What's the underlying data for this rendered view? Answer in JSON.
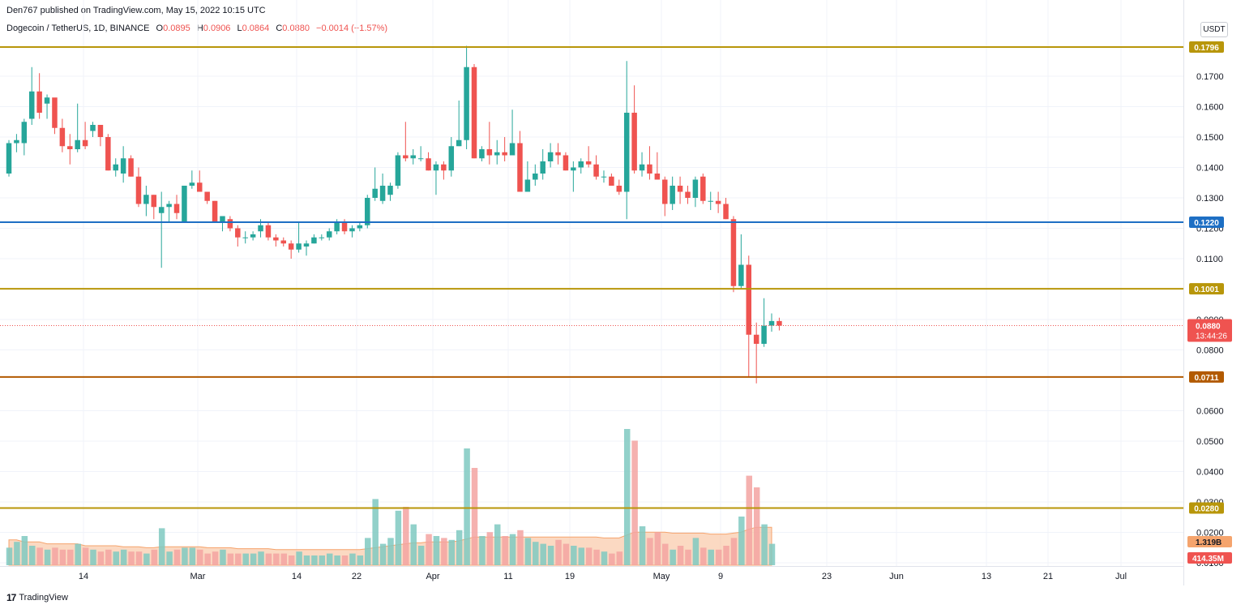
{
  "header": {
    "published": "Den767 published on TradingView.com, May 15, 2022 10:15 UTC",
    "symbol": "Dogecoin / TetherUS, 1D, BINANCE",
    "open_label": "O",
    "open": "0.0895",
    "high_label": "H",
    "high": "0.0906",
    "low_label": "L",
    "low": "0.0864",
    "close_label": "C",
    "close": "0.0880",
    "change": "−0.0014 (−1.57%)",
    "currency": "USDT"
  },
  "footer": {
    "brand": "TradingView"
  },
  "colors": {
    "up": "#26a69a",
    "down": "#ef5350",
    "gold": "#b8960a",
    "blue": "#1e6fc4",
    "brown": "#b25a00"
  },
  "chart_data": {
    "type": "candlestick",
    "title": "",
    "y_ticks": [
      "0.1700",
      "0.1600",
      "0.1500",
      "0.1400",
      "0.1300",
      "0.1200",
      "0.1100",
      "0.0900",
      "0.0800",
      "0.0600",
      "0.0500",
      "0.0400",
      "0.0300",
      "0.0200",
      "0.0100"
    ],
    "x_ticks": [
      "14",
      "Mar",
      "14",
      "22",
      "Apr",
      "11",
      "19",
      "May",
      "9",
      "23",
      "Jun",
      "13",
      "21",
      "Jul"
    ],
    "horizontal_levels": [
      {
        "value": 0.1796,
        "label": "0.1796",
        "color": "gold"
      },
      {
        "value": 0.122,
        "label": "0.1220",
        "color": "blue"
      },
      {
        "value": 0.1001,
        "label": "0.1001",
        "color": "gold"
      },
      {
        "value": 0.0711,
        "label": "0.0711",
        "color": "brown"
      },
      {
        "value": 0.028,
        "label": "0.0280",
        "color": "gold"
      }
    ],
    "last_price": {
      "value": 0.088,
      "label": "0.0880",
      "countdown": "13:44:26"
    },
    "volume_labels": {
      "ma": "1.319B",
      "last": "414.35M"
    },
    "candles": [
      {
        "o": 0.138,
        "h": 0.149,
        "l": 0.137,
        "c": 0.148
      },
      {
        "o": 0.148,
        "h": 0.151,
        "l": 0.145,
        "c": 0.149
      },
      {
        "o": 0.148,
        "h": 0.156,
        "l": 0.144,
        "c": 0.155
      },
      {
        "o": 0.156,
        "h": 0.173,
        "l": 0.154,
        "c": 0.165
      },
      {
        "o": 0.165,
        "h": 0.171,
        "l": 0.156,
        "c": 0.158
      },
      {
        "o": 0.161,
        "h": 0.164,
        "l": 0.156,
        "c": 0.163
      },
      {
        "o": 0.163,
        "h": 0.162,
        "l": 0.151,
        "c": 0.153
      },
      {
        "o": 0.153,
        "h": 0.156,
        "l": 0.145,
        "c": 0.147
      },
      {
        "o": 0.147,
        "h": 0.151,
        "l": 0.141,
        "c": 0.146
      },
      {
        "o": 0.146,
        "h": 0.161,
        "l": 0.145,
        "c": 0.149
      },
      {
        "o": 0.149,
        "h": 0.155,
        "l": 0.146,
        "c": 0.147
      },
      {
        "o": 0.152,
        "h": 0.155,
        "l": 0.15,
        "c": 0.154
      },
      {
        "o": 0.154,
        "h": 0.154,
        "l": 0.147,
        "c": 0.15
      },
      {
        "o": 0.15,
        "h": 0.151,
        "l": 0.139,
        "c": 0.139
      },
      {
        "o": 0.139,
        "h": 0.143,
        "l": 0.137,
        "c": 0.141
      },
      {
        "o": 0.138,
        "h": 0.147,
        "l": 0.135,
        "c": 0.143
      },
      {
        "o": 0.143,
        "h": 0.144,
        "l": 0.137,
        "c": 0.137
      },
      {
        "o": 0.137,
        "h": 0.14,
        "l": 0.127,
        "c": 0.128
      },
      {
        "o": 0.128,
        "h": 0.134,
        "l": 0.124,
        "c": 0.131
      },
      {
        "o": 0.131,
        "h": 0.131,
        "l": 0.123,
        "c": 0.127
      },
      {
        "o": 0.125,
        "h": 0.132,
        "l": 0.107,
        "c": 0.127
      },
      {
        "o": 0.127,
        "h": 0.129,
        "l": 0.122,
        "c": 0.128
      },
      {
        "o": 0.128,
        "h": 0.131,
        "l": 0.123,
        "c": 0.125
      },
      {
        "o": 0.122,
        "h": 0.134,
        "l": 0.122,
        "c": 0.134
      },
      {
        "o": 0.134,
        "h": 0.139,
        "l": 0.133,
        "c": 0.135
      },
      {
        "o": 0.135,
        "h": 0.139,
        "l": 0.132,
        "c": 0.132
      },
      {
        "o": 0.132,
        "h": 0.132,
        "l": 0.128,
        "c": 0.129
      },
      {
        "o": 0.129,
        "h": 0.129,
        "l": 0.122,
        "c": 0.122
      },
      {
        "o": 0.122,
        "h": 0.124,
        "l": 0.119,
        "c": 0.124
      },
      {
        "o": 0.123,
        "h": 0.124,
        "l": 0.119,
        "c": 0.12
      },
      {
        "o": 0.12,
        "h": 0.121,
        "l": 0.114,
        "c": 0.117
      },
      {
        "o": 0.117,
        "h": 0.119,
        "l": 0.115,
        "c": 0.117
      },
      {
        "o": 0.117,
        "h": 0.119,
        "l": 0.116,
        "c": 0.118
      },
      {
        "o": 0.119,
        "h": 0.123,
        "l": 0.117,
        "c": 0.121
      },
      {
        "o": 0.121,
        "h": 0.122,
        "l": 0.116,
        "c": 0.117
      },
      {
        "o": 0.117,
        "h": 0.118,
        "l": 0.114,
        "c": 0.116
      },
      {
        "o": 0.116,
        "h": 0.117,
        "l": 0.114,
        "c": 0.115
      },
      {
        "o": 0.115,
        "h": 0.116,
        "l": 0.11,
        "c": 0.113
      },
      {
        "o": 0.113,
        "h": 0.122,
        "l": 0.112,
        "c": 0.115
      },
      {
        "o": 0.114,
        "h": 0.116,
        "l": 0.111,
        "c": 0.115
      },
      {
        "o": 0.115,
        "h": 0.118,
        "l": 0.115,
        "c": 0.117
      },
      {
        "o": 0.117,
        "h": 0.118,
        "l": 0.116,
        "c": 0.117
      },
      {
        "o": 0.117,
        "h": 0.12,
        "l": 0.116,
        "c": 0.119
      },
      {
        "o": 0.119,
        "h": 0.123,
        "l": 0.118,
        "c": 0.122
      },
      {
        "o": 0.122,
        "h": 0.123,
        "l": 0.118,
        "c": 0.119
      },
      {
        "o": 0.119,
        "h": 0.121,
        "l": 0.117,
        "c": 0.12
      },
      {
        "o": 0.12,
        "h": 0.122,
        "l": 0.119,
        "c": 0.121
      },
      {
        "o": 0.121,
        "h": 0.131,
        "l": 0.12,
        "c": 0.13
      },
      {
        "o": 0.13,
        "h": 0.14,
        "l": 0.129,
        "c": 0.133
      },
      {
        "o": 0.129,
        "h": 0.138,
        "l": 0.128,
        "c": 0.134
      },
      {
        "o": 0.131,
        "h": 0.135,
        "l": 0.129,
        "c": 0.134
      },
      {
        "o": 0.134,
        "h": 0.145,
        "l": 0.133,
        "c": 0.144
      },
      {
        "o": 0.144,
        "h": 0.155,
        "l": 0.142,
        "c": 0.143
      },
      {
        "o": 0.143,
        "h": 0.146,
        "l": 0.141,
        "c": 0.144
      },
      {
        "o": 0.143,
        "h": 0.147,
        "l": 0.142,
        "c": 0.143
      },
      {
        "o": 0.143,
        "h": 0.145,
        "l": 0.139,
        "c": 0.139
      },
      {
        "o": 0.139,
        "h": 0.142,
        "l": 0.131,
        "c": 0.141
      },
      {
        "o": 0.141,
        "h": 0.142,
        "l": 0.136,
        "c": 0.139
      },
      {
        "o": 0.139,
        "h": 0.15,
        "l": 0.137,
        "c": 0.147
      },
      {
        "o": 0.147,
        "h": 0.162,
        "l": 0.147,
        "c": 0.149
      },
      {
        "o": 0.149,
        "h": 0.18,
        "l": 0.146,
        "c": 0.173
      },
      {
        "o": 0.173,
        "h": 0.174,
        "l": 0.143,
        "c": 0.143
      },
      {
        "o": 0.143,
        "h": 0.147,
        "l": 0.142,
        "c": 0.146
      },
      {
        "o": 0.146,
        "h": 0.155,
        "l": 0.141,
        "c": 0.144
      },
      {
        "o": 0.144,
        "h": 0.149,
        "l": 0.141,
        "c": 0.145
      },
      {
        "o": 0.145,
        "h": 0.15,
        "l": 0.142,
        "c": 0.144
      },
      {
        "o": 0.144,
        "h": 0.159,
        "l": 0.144,
        "c": 0.148
      },
      {
        "o": 0.148,
        "h": 0.152,
        "l": 0.132,
        "c": 0.132
      },
      {
        "o": 0.132,
        "h": 0.142,
        "l": 0.132,
        "c": 0.136
      },
      {
        "o": 0.136,
        "h": 0.141,
        "l": 0.134,
        "c": 0.138
      },
      {
        "o": 0.138,
        "h": 0.146,
        "l": 0.136,
        "c": 0.142
      },
      {
        "o": 0.142,
        "h": 0.148,
        "l": 0.14,
        "c": 0.145
      },
      {
        "o": 0.145,
        "h": 0.148,
        "l": 0.141,
        "c": 0.144
      },
      {
        "o": 0.144,
        "h": 0.145,
        "l": 0.139,
        "c": 0.139
      },
      {
        "o": 0.139,
        "h": 0.142,
        "l": 0.132,
        "c": 0.14
      },
      {
        "o": 0.14,
        "h": 0.143,
        "l": 0.138,
        "c": 0.142
      },
      {
        "o": 0.142,
        "h": 0.147,
        "l": 0.14,
        "c": 0.141
      },
      {
        "o": 0.141,
        "h": 0.144,
        "l": 0.136,
        "c": 0.137
      },
      {
        "o": 0.137,
        "h": 0.139,
        "l": 0.135,
        "c": 0.137
      },
      {
        "o": 0.137,
        "h": 0.138,
        "l": 0.134,
        "c": 0.134
      },
      {
        "o": 0.134,
        "h": 0.136,
        "l": 0.131,
        "c": 0.132
      },
      {
        "o": 0.132,
        "h": 0.175,
        "l": 0.123,
        "c": 0.158
      },
      {
        "o": 0.158,
        "h": 0.167,
        "l": 0.138,
        "c": 0.139
      },
      {
        "o": 0.139,
        "h": 0.145,
        "l": 0.137,
        "c": 0.141
      },
      {
        "o": 0.141,
        "h": 0.147,
        "l": 0.136,
        "c": 0.138
      },
      {
        "o": 0.138,
        "h": 0.145,
        "l": 0.136,
        "c": 0.136
      },
      {
        "o": 0.136,
        "h": 0.137,
        "l": 0.124,
        "c": 0.128
      },
      {
        "o": 0.128,
        "h": 0.137,
        "l": 0.126,
        "c": 0.134
      },
      {
        "o": 0.134,
        "h": 0.137,
        "l": 0.128,
        "c": 0.132
      },
      {
        "o": 0.132,
        "h": 0.134,
        "l": 0.128,
        "c": 0.13
      },
      {
        "o": 0.13,
        "h": 0.137,
        "l": 0.127,
        "c": 0.136
      },
      {
        "o": 0.137,
        "h": 0.138,
        "l": 0.128,
        "c": 0.129
      },
      {
        "o": 0.129,
        "h": 0.132,
        "l": 0.126,
        "c": 0.129
      },
      {
        "o": 0.129,
        "h": 0.132,
        "l": 0.125,
        "c": 0.128
      },
      {
        "o": 0.128,
        "h": 0.13,
        "l": 0.123,
        "c": 0.123
      },
      {
        "o": 0.123,
        "h": 0.124,
        "l": 0.099,
        "c": 0.101
      },
      {
        "o": 0.101,
        "h": 0.118,
        "l": 0.1,
        "c": 0.108
      },
      {
        "o": 0.108,
        "h": 0.111,
        "l": 0.071,
        "c": 0.085
      },
      {
        "o": 0.085,
        "h": 0.089,
        "l": 0.069,
        "c": 0.082
      },
      {
        "o": 0.082,
        "h": 0.097,
        "l": 0.081,
        "c": 0.088
      },
      {
        "o": 0.088,
        "h": 0.092,
        "l": 0.086,
        "c": 0.0895
      },
      {
        "o": 0.0895,
        "h": 0.0906,
        "l": 0.0864,
        "c": 0.088
      }
    ],
    "volume_unit": "relative",
    "volume": [
      0.9,
      1.2,
      1.5,
      1.0,
      0.9,
      0.8,
      0.9,
      0.8,
      0.8,
      1.1,
      0.9,
      0.8,
      0.7,
      0.8,
      0.7,
      0.8,
      0.7,
      0.7,
      0.6,
      0.8,
      1.9,
      0.7,
      0.8,
      0.9,
      0.9,
      0.8,
      0.6,
      0.7,
      0.8,
      0.6,
      0.6,
      0.6,
      0.6,
      0.7,
      0.6,
      0.6,
      0.6,
      0.5,
      0.7,
      0.5,
      0.5,
      0.5,
      0.6,
      0.5,
      0.5,
      0.6,
      0.5,
      1.4,
      3.4,
      1.1,
      1.4,
      2.8,
      3.0,
      2.1,
      1.0,
      1.6,
      1.5,
      1.4,
      1.3,
      1.8,
      6.0,
      5.0,
      1.5,
      1.7,
      2.1,
      1.5,
      1.6,
      1.8,
      1.4,
      1.2,
      1.1,
      1.0,
      1.3,
      1.1,
      1.0,
      0.9,
      0.9,
      0.8,
      0.7,
      0.6,
      0.7,
      7.0,
      6.4,
      2.0,
      1.4,
      1.7,
      1.1,
      0.8,
      1.0,
      0.8,
      1.4,
      0.9,
      0.8,
      0.8,
      1.0,
      1.4,
      2.5,
      4.6,
      4.0,
      2.1,
      1.1
    ],
    "volume_ma": [
      1.3,
      1.3,
      1.2,
      1.2,
      1.2,
      1.1,
      1.1,
      1.1,
      1.1,
      1.1,
      1.0,
      1.0,
      1.0,
      1.0,
      1.0,
      0.95,
      0.95,
      0.95,
      0.9,
      0.9,
      0.95,
      0.95,
      0.95,
      0.95,
      0.95,
      0.95,
      0.9,
      0.9,
      0.9,
      0.9,
      0.85,
      0.85,
      0.85,
      0.85,
      0.85,
      0.8,
      0.8,
      0.8,
      0.8,
      0.8,
      0.8,
      0.8,
      0.8,
      0.8,
      0.8,
      0.8,
      0.8,
      0.85,
      0.9,
      0.95,
      1.0,
      1.05,
      1.1,
      1.15,
      1.15,
      1.2,
      1.2,
      1.2,
      1.2,
      1.25,
      1.35,
      1.45,
      1.45,
      1.45,
      1.45,
      1.45,
      1.45,
      1.45,
      1.45,
      1.45,
      1.45,
      1.45,
      1.45,
      1.45,
      1.45,
      1.45,
      1.45,
      1.45,
      1.4,
      1.4,
      1.4,
      1.55,
      1.7,
      1.7,
      1.7,
      1.7,
      1.7,
      1.65,
      1.65,
      1.65,
      1.65,
      1.65,
      1.6,
      1.6,
      1.6,
      1.65,
      1.7,
      1.85,
      1.95,
      1.95,
      1.95
    ]
  }
}
